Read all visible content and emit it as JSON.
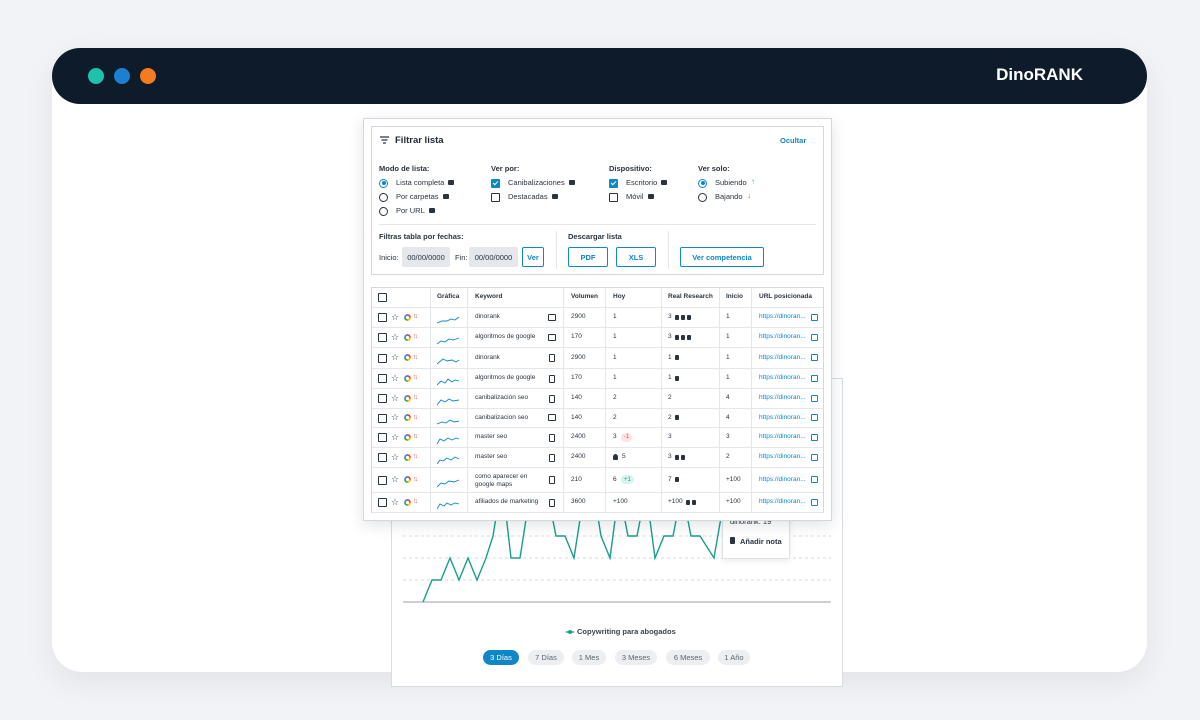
{
  "window": {
    "title": "DinoRANK"
  },
  "filter": {
    "title": "Filtrar lista",
    "hide": "Ocultar",
    "groups": [
      {
        "label": "Modo de lista:",
        "kind": "radio",
        "options": [
          {
            "text": "Lista completa",
            "on": true
          },
          {
            "text": "Por carpetas",
            "on": false
          },
          {
            "text": "Por URL",
            "on": false
          }
        ]
      },
      {
        "label": "Ver por:",
        "kind": "check",
        "options": [
          {
            "text": "Canibalizaciones",
            "on": true
          },
          {
            "text": "Destacadas",
            "on": false
          }
        ]
      },
      {
        "label": "Dispositivo:",
        "kind": "check",
        "options": [
          {
            "text": "Escritorio",
            "on": true
          },
          {
            "text": "Móvil",
            "on": false
          }
        ]
      },
      {
        "label": "Ver solo:",
        "kind": "radio",
        "options": [
          {
            "text": "Subiendo",
            "on": true
          },
          {
            "text": "Bajando",
            "on": false
          }
        ]
      }
    ],
    "dates": {
      "label": "Filtras tabla por fechas:",
      "start_label": "Inicio:",
      "start": "00/00/0000",
      "end_label": "Fin:",
      "end": "00/00/0000",
      "button": "Ver"
    },
    "download": {
      "label": "Descargar lista",
      "pdf": "PDF",
      "xls": "XLS",
      "competition": "Ver competencia"
    }
  },
  "table": {
    "headers": [
      "Gráfica",
      "Keyword",
      "Volumen",
      "Hoy",
      "Real Research",
      "Inicio",
      "URL posicionada"
    ],
    "rows": [
      {
        "keyword": "dinorank",
        "device": "desktop",
        "volume": "2900",
        "today": "1",
        "real": "3",
        "start": "1",
        "url": "https://dinoran..."
      },
      {
        "keyword": "algoritmos de google",
        "device": "desktop",
        "volume": "170",
        "today": "1",
        "real": "3",
        "start": "1",
        "url": "https://dinoran..."
      },
      {
        "keyword": "dinorank",
        "device": "mobile",
        "volume": "2900",
        "today": "1",
        "real": "1",
        "start": "1",
        "url": "https://dinoran..."
      },
      {
        "keyword": "algoritmos de google",
        "device": "mobile",
        "volume": "170",
        "today": "1",
        "real": "1",
        "start": "1",
        "url": "https://dinoran..."
      },
      {
        "keyword": "canibalización seo",
        "device": "mobile",
        "volume": "140",
        "today": "2",
        "real": "2",
        "start": "4",
        "url": "https://dinoran..."
      },
      {
        "keyword": "canibalizacion seo",
        "device": "desktop",
        "volume": "140",
        "today": "2",
        "real": "2",
        "start": "4",
        "url": "https://dinoran..."
      },
      {
        "keyword": "master seo",
        "device": "mobile",
        "volume": "2400",
        "today": "3",
        "badge": "-1",
        "real": "3",
        "start": "3",
        "url": "https://dinoran..."
      },
      {
        "keyword": "master seo",
        "device": "mobile",
        "volume": "2400",
        "today": "5",
        "real": "3",
        "start": "2",
        "url": "https://dinoran..."
      },
      {
        "keyword": "como aparecer en google maps",
        "device": "mobile",
        "volume": "210",
        "today": "6",
        "badge": "+1",
        "real": "7",
        "start": "+100",
        "url": "https://dinoran..."
      },
      {
        "keyword": "afiliados de marketing",
        "device": "mobile",
        "volume": "3600",
        "today": "+100",
        "real": "+100",
        "start": "+100",
        "url": "https://dinoran..."
      }
    ]
  },
  "chart": {
    "legend": "Copywriting para abogados",
    "tooltip": "dinorank: 19",
    "note": "Añadir nota",
    "ranges": [
      {
        "text": "3 Días",
        "on": true
      },
      {
        "text": "7 Días",
        "on": false
      },
      {
        "text": "1 Mes",
        "on": false
      },
      {
        "text": "3 Meses",
        "on": false
      },
      {
        "text": "6 Meses",
        "on": false
      },
      {
        "text": "1 Año",
        "on": false
      }
    ]
  }
}
